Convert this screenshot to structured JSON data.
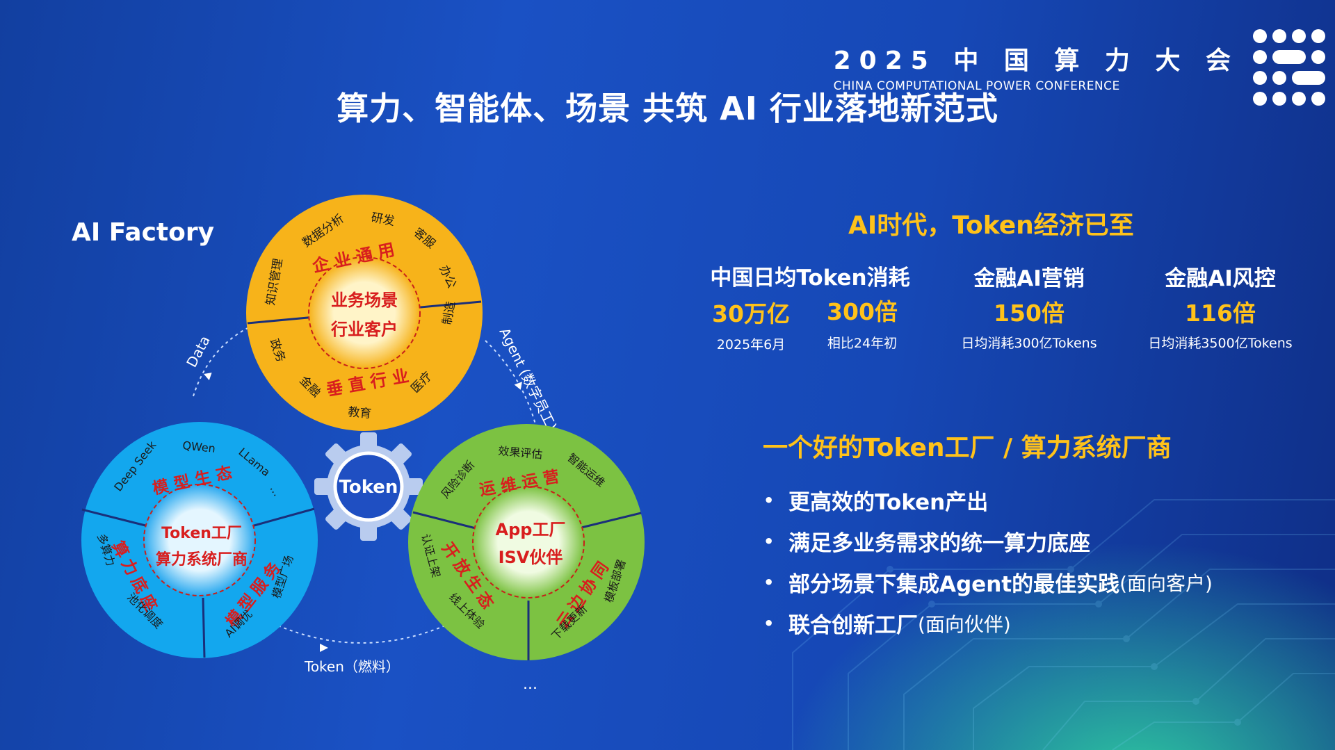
{
  "header": {
    "title": "算力、智能体、场景 共筑 AI 行业落地新范式",
    "conference_cn": "2025 中 国 算 力 大 会",
    "conference_en": "CHINA COMPUTATIONAL POWER CONFERENCE"
  },
  "left": {
    "label": "AI Factory",
    "top_circle": {
      "center_line1": "业务场景",
      "center_line2": "行业客户",
      "arc_top": "企业通用",
      "arc_bottom": "垂直行业",
      "items": [
        "知识管理",
        "数据分析",
        "研发",
        "客服",
        "办公",
        "制造",
        "医疗",
        "教育",
        "金融",
        "政务"
      ]
    },
    "left_circle": {
      "center_line1": "Token工厂",
      "center_line2": "算力系统厂商",
      "arc_top": "模型生态",
      "arc_left": "算力底座",
      "arc_right": "模型服务",
      "items": [
        "Deep Seek",
        "QWen",
        "LLama",
        "...",
        "多算力",
        "池化调度",
        "AI调优",
        "模型广场"
      ]
    },
    "right_circle": {
      "center_line1": "App工厂",
      "center_line2": "ISV伙伴",
      "arc_top": "运维运营",
      "arc_left": "开放生态",
      "arc_right": "云边协同",
      "items": [
        "风险诊断",
        "效果评估",
        "智能运维",
        "认证上架",
        "线上体验",
        "下载更新",
        "模板部署"
      ]
    },
    "gear_label": "Token",
    "flow_data": "Data",
    "flow_agent": "Agent (数字员工)",
    "flow_token": "Token（燃料）",
    "ellipsis": "..."
  },
  "right": {
    "title": "AI时代，Token经济已至",
    "stats": [
      {
        "head": "中国日均Token消耗",
        "values": [
          {
            "value": "30万亿",
            "sub": "2025年6月"
          },
          {
            "value": "300倍",
            "sub": "相比24年初"
          }
        ]
      },
      {
        "head": "金融AI营销",
        "values": [
          {
            "value": "150倍",
            "sub": "日均消耗300亿Tokens"
          }
        ]
      },
      {
        "head": "金融AI风控",
        "values": [
          {
            "value": "116倍",
            "sub": "日均消耗3500亿Tokens"
          }
        ]
      }
    ],
    "section2_title": "一个好的Token工厂 / 算力系统厂商",
    "bullet_symbol": "•",
    "bullets": [
      {
        "text": "更高效的Token产出",
        "sub": ""
      },
      {
        "text": "满足多业务需求的统一算力底座",
        "sub": ""
      },
      {
        "text": "部分场景下集成Agent的最佳实践",
        "sub": "(面向客户)"
      },
      {
        "text": "联合创新工厂",
        "sub": "(面向伙伴)"
      }
    ]
  },
  "colors": {
    "background_start": "#123fa0",
    "background_end": "#0f2e86",
    "accent_yellow": "#ffc21a",
    "circle_orange": "#f7b31a",
    "circle_blue": "#13a7ee",
    "circle_green": "#7cc242",
    "label_red": "#d81e1e"
  }
}
